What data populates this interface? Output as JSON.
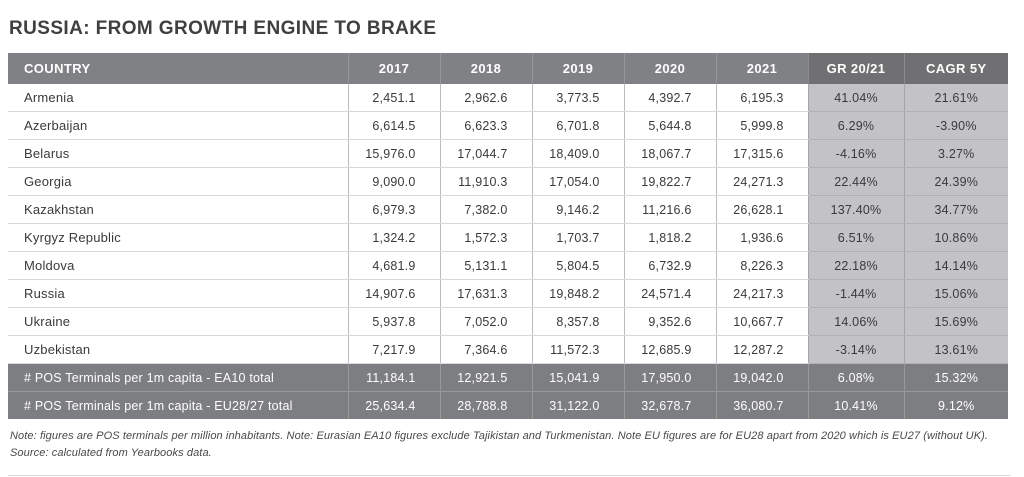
{
  "title": "RUSSIA: FROM GROWTH ENGINE TO BRAKE",
  "colors": {
    "header_bg": "#808184",
    "header_pct_bg": "#707073",
    "pct_column_bg": "#c3c3c5",
    "summary_row_bg": "#7d7e81",
    "title_color": "#404042",
    "body_text": "#3a3a3c"
  },
  "notes": {
    "line1": "Note: figures are POS terminals per million inhabitants. Note: Eurasian EA10 figures exclude Tajikistan and Turkmenistan. Note EU figures are for EU28 apart from 2020 which is EU27 (without UK).",
    "line2": "Source: calculated from Yearbooks data."
  },
  "chart_data": {
    "type": "table",
    "title": "RUSSIA: FROM GROWTH ENGINE TO BRAKE",
    "columns": [
      "COUNTRY",
      "2017",
      "2018",
      "2019",
      "2020",
      "2021",
      "GR 20/21",
      "CAGR 5Y"
    ],
    "years": [
      2017,
      2018,
      2019,
      2020,
      2021
    ],
    "rows": [
      {
        "label": "Armenia",
        "values": [
          2451.1,
          2962.6,
          3773.5,
          4392.7,
          6195.3
        ],
        "gr_20_21_pct": 41.04,
        "cagr_5y_pct": 21.61
      },
      {
        "label": "Azerbaijan",
        "values": [
          6614.5,
          6623.3,
          6701.8,
          5644.8,
          5999.8
        ],
        "gr_20_21_pct": 6.29,
        "cagr_5y_pct": -3.9
      },
      {
        "label": "Belarus",
        "values": [
          15976.0,
          17044.7,
          18409.0,
          18067.7,
          17315.6
        ],
        "gr_20_21_pct": -4.16,
        "cagr_5y_pct": 3.27
      },
      {
        "label": "Georgia",
        "values": [
          9090.0,
          11910.3,
          17054.0,
          19822.7,
          24271.3
        ],
        "gr_20_21_pct": 22.44,
        "cagr_5y_pct": 24.39
      },
      {
        "label": "Kazakhstan",
        "values": [
          6979.3,
          7382.0,
          9146.2,
          11216.6,
          26628.1
        ],
        "gr_20_21_pct": 137.4,
        "cagr_5y_pct": 34.77
      },
      {
        "label": "Kyrgyz Republic",
        "values": [
          1324.2,
          1572.3,
          1703.7,
          1818.2,
          1936.6
        ],
        "gr_20_21_pct": 6.51,
        "cagr_5y_pct": 10.86
      },
      {
        "label": "Moldova",
        "values": [
          4681.9,
          5131.1,
          5804.5,
          6732.9,
          8226.3
        ],
        "gr_20_21_pct": 22.18,
        "cagr_5y_pct": 14.14
      },
      {
        "label": "Russia",
        "values": [
          14907.6,
          17631.3,
          19848.2,
          24571.4,
          24217.3
        ],
        "gr_20_21_pct": -1.44,
        "cagr_5y_pct": 15.06
      },
      {
        "label": "Ukraine",
        "values": [
          5937.8,
          7052.0,
          8357.8,
          9352.6,
          10667.7
        ],
        "gr_20_21_pct": 14.06,
        "cagr_5y_pct": 15.69
      },
      {
        "label": "Uzbekistan",
        "values": [
          7217.9,
          7364.6,
          11572.3,
          12685.9,
          12287.2
        ],
        "gr_20_21_pct": -3.14,
        "cagr_5y_pct": 13.61
      }
    ],
    "summary_rows": [
      {
        "label": "# POS Terminals per 1m capita - EA10 total",
        "values": [
          11184.1,
          12921.5,
          15041.9,
          17950.0,
          19042.0
        ],
        "gr_20_21_pct": 6.08,
        "cagr_5y_pct": 15.32
      },
      {
        "label": "# POS Terminals per 1m capita - EU28/27 total",
        "values": [
          25634.4,
          28788.8,
          31122.0,
          32678.7,
          36080.7
        ],
        "gr_20_21_pct": 10.41,
        "cagr_5y_pct": 9.12
      }
    ]
  }
}
